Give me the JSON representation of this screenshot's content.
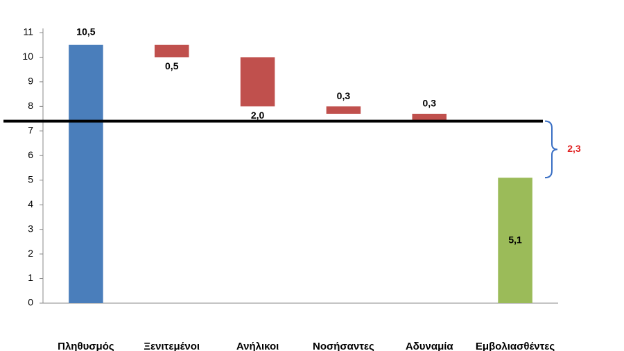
{
  "chart_data": {
    "type": "waterfall",
    "categories": [
      "Πληθυσμός",
      "Ξενιτεμένοι",
      "Ανήλικοι",
      "Νοσήσαντες",
      "Αδυναμία",
      "Εμβολιασθέντες"
    ],
    "measures": [
      "total",
      "decrease",
      "decrease",
      "decrease",
      "decrease",
      "total"
    ],
    "values": [
      10.5,
      0.5,
      2.0,
      0.3,
      0.3,
      5.1
    ],
    "value_labels": [
      "10,5",
      "0,5",
      "2,0",
      "0,3",
      "0,3",
      "5,1"
    ],
    "colors": {
      "total": "#4a7ebb",
      "decrease": "#c0504d",
      "final": "#9bbb59"
    },
    "reference_line": 7.4,
    "annotation": {
      "value": 2.3,
      "label": "2,3",
      "color": "#e02020"
    },
    "ylim": [
      0,
      11
    ],
    "yticks": [
      0,
      1,
      2,
      3,
      4,
      5,
      6,
      7,
      8,
      9,
      10,
      11
    ],
    "grid": false
  }
}
